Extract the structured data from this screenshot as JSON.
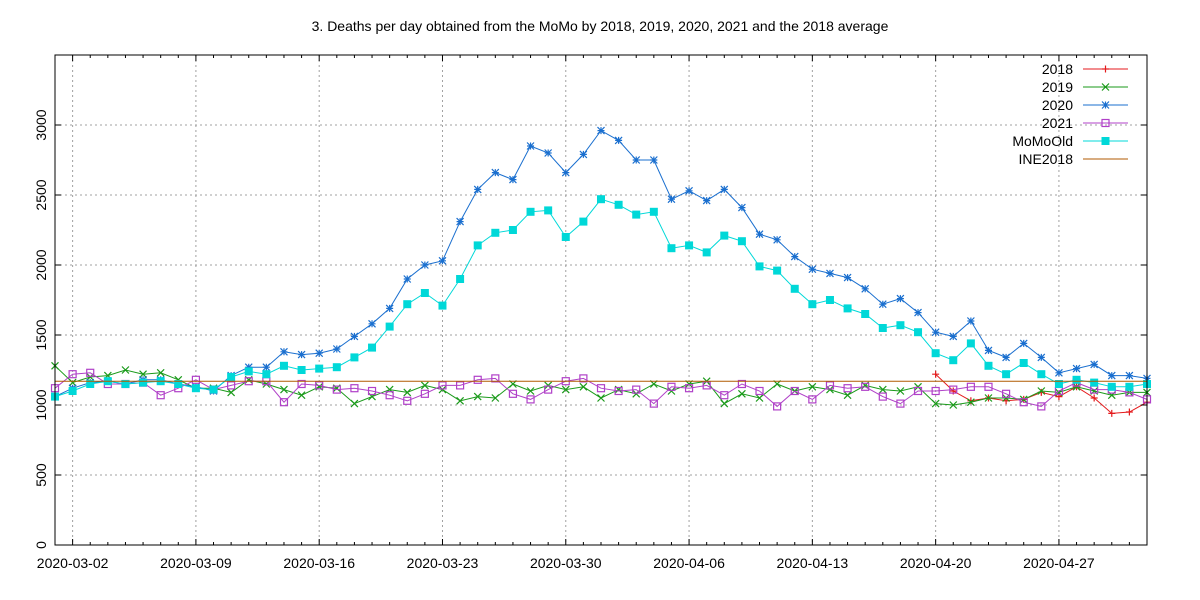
{
  "chart_data": {
    "type": "line",
    "title": "3. Deaths per day obtained from the MoMo by 2018, 2019, 2020, 2021 and the 2018 average",
    "xlabel": "",
    "ylabel": "",
    "x_start": "2020-03-01",
    "x_tick_labels": [
      "2020-03-02",
      "2020-03-09",
      "2020-03-16",
      "2020-03-23",
      "2020-03-30",
      "2020-04-06",
      "2020-04-13",
      "2020-04-20",
      "2020-04-27"
    ],
    "y_ticks": [
      0,
      500,
      1000,
      1500,
      2000,
      2500,
      3000
    ],
    "ylim": [
      0,
      3500
    ],
    "grid": true,
    "legend_position": "top-right",
    "series": [
      {
        "name": "2018",
        "color": "#e41a1c",
        "marker": "plus",
        "x_offset": 50,
        "values": [
          1220,
          1100,
          1030,
          1050,
          1030,
          1040,
          1090,
          1060,
          1130,
          1050,
          940,
          950,
          1020
        ]
      },
      {
        "name": "2019",
        "color": "#1a9a1a",
        "marker": "x",
        "x_offset": 0,
        "values": [
          1280,
          1160,
          1200,
          1210,
          1250,
          1220,
          1230,
          1180,
          1120,
          1120,
          1090,
          1180,
          1150,
          1110,
          1070,
          1130,
          1120,
          1010,
          1060,
          1110,
          1090,
          1140,
          1110,
          1030,
          1060,
          1050,
          1150,
          1100,
          1140,
          1110,
          1130,
          1050,
          1110,
          1080,
          1150,
          1100,
          1150,
          1170,
          1010,
          1080,
          1050,
          1150,
          1100,
          1130,
          1110,
          1070,
          1140,
          1110,
          1100,
          1130,
          1010,
          1000,
          1020,
          1050,
          1050,
          1040,
          1100,
          1090,
          1130,
          1100,
          1070,
          1090,
          1090
        ]
      },
      {
        "name": "2020",
        "color": "#1a6fcf",
        "marker": "star",
        "x_offset": 0,
        "values": [
          1060,
          1120,
          1160,
          1170,
          1150,
          1180,
          1180,
          1150,
          1130,
          1100,
          1210,
          1270,
          1270,
          1380,
          1360,
          1370,
          1400,
          1490,
          1580,
          1690,
          1900,
          2000,
          2030,
          2310,
          2540,
          2660,
          2610,
          2850,
          2800,
          2660,
          2790,
          2960,
          2890,
          2750,
          2750,
          2470,
          2530,
          2460,
          2540,
          2410,
          2220,
          2180,
          2060,
          1970,
          1940,
          1910,
          1830,
          1720,
          1760,
          1660,
          1520,
          1490,
          1600,
          1390,
          1340,
          1440,
          1340,
          1230,
          1260,
          1290,
          1210,
          1210,
          1190
        ]
      },
      {
        "name": "2021",
        "color": "#b040c8",
        "marker": "square-open",
        "x_offset": 0,
        "values": [
          1120,
          1220,
          1230,
          1150,
          1150,
          1160,
          1070,
          1120,
          1180,
          1110,
          1140,
          1170,
          1170,
          1020,
          1150,
          1140,
          1110,
          1120,
          1100,
          1070,
          1030,
          1080,
          1140,
          1140,
          1180,
          1190,
          1080,
          1040,
          1110,
          1170,
          1190,
          1120,
          1100,
          1110,
          1010,
          1130,
          1120,
          1140,
          1070,
          1150,
          1100,
          990,
          1100,
          1040,
          1140,
          1120,
          1130,
          1060,
          1010,
          1100,
          1100,
          1110,
          1130,
          1130,
          1080,
          1020,
          990,
          1100,
          1160,
          1110,
          1110,
          1090,
          1040
        ]
      },
      {
        "name": "MoMoOld",
        "color": "#00d8d8",
        "marker": "square-filled",
        "x_offset": 0,
        "values": [
          1060,
          1100,
          1150,
          1170,
          1150,
          1160,
          1170,
          1150,
          1120,
          1110,
          1200,
          1240,
          1220,
          1280,
          1250,
          1260,
          1270,
          1340,
          1410,
          1560,
          1720,
          1800,
          1710,
          1900,
          2140,
          2230,
          2250,
          2380,
          2390,
          2200,
          2310,
          2470,
          2430,
          2360,
          2380,
          2120,
          2140,
          2090,
          2210,
          2170,
          1990,
          1960,
          1830,
          1720,
          1750,
          1690,
          1650,
          1550,
          1570,
          1520,
          1370,
          1320,
          1440,
          1280,
          1220,
          1300,
          1220,
          1150,
          1180,
          1160,
          1130,
          1130,
          1150
        ]
      },
      {
        "name": "INE2018",
        "color": "#b05a00",
        "marker": "none",
        "x_offset": 0,
        "values": [
          1170,
          1170
        ]
      }
    ]
  }
}
